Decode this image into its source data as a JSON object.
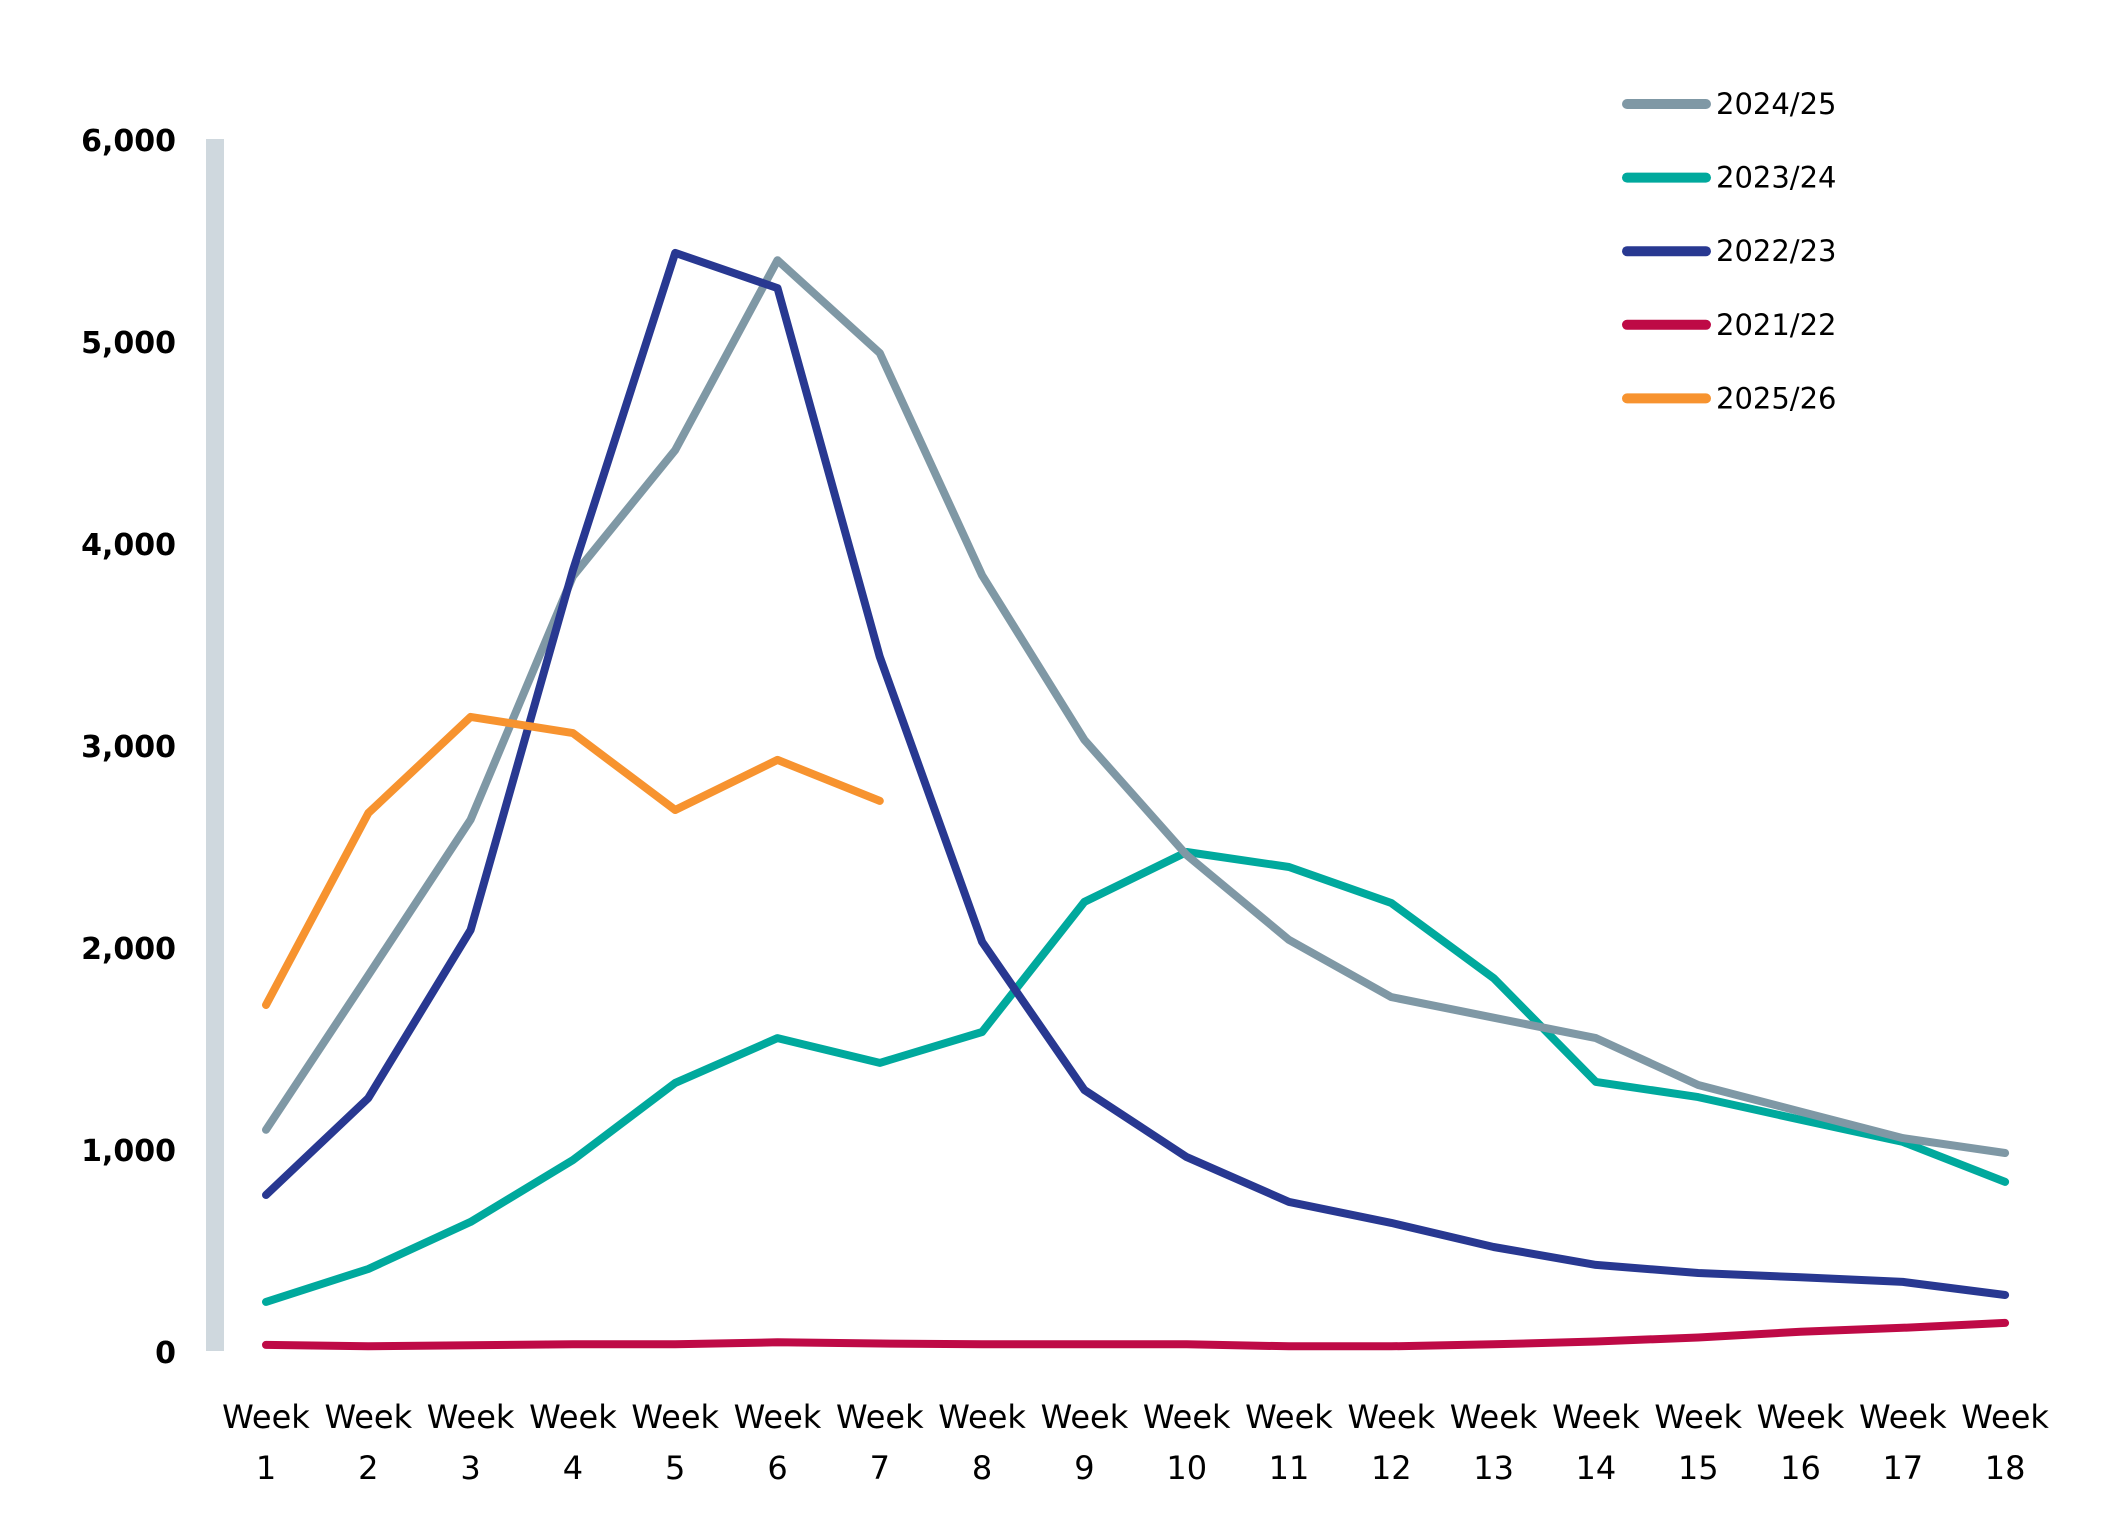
{
  "chart_data": {
    "type": "line",
    "title": "",
    "xlabel": "",
    "ylabel": "",
    "ylim": [
      0,
      6000
    ],
    "yticks": [
      0,
      1000,
      2000,
      3000,
      4000,
      5000,
      6000
    ],
    "ytick_labels": [
      "0",
      "1,000",
      "2,000",
      "3,000",
      "4,000",
      "5,000",
      "6,000"
    ],
    "grid": false,
    "legend_position": "top-right",
    "categories": [
      [
        "Week",
        "1"
      ],
      [
        "Week",
        "2"
      ],
      [
        "Week",
        "3"
      ],
      [
        "Week",
        "4"
      ],
      [
        "Week",
        "5"
      ],
      [
        "Week",
        "6"
      ],
      [
        "Week",
        "7"
      ],
      [
        "Week",
        "8"
      ],
      [
        "Week",
        "9"
      ],
      [
        "Week",
        "10"
      ],
      [
        "Week",
        "11"
      ],
      [
        "Week",
        "12"
      ],
      [
        "Week",
        "13"
      ],
      [
        "Week",
        "14"
      ],
      [
        "Week",
        "15"
      ],
      [
        "Week",
        "16"
      ],
      [
        "Week",
        "17"
      ],
      [
        "Week",
        "18"
      ]
    ],
    "series": [
      {
        "name": "2024/25",
        "color": "#7F98A5",
        "values": [
          1100,
          1865,
          2635,
          3840,
          4465,
          5405,
          4945,
          3845,
          3030,
          2460,
          2040,
          1757,
          1655,
          1554,
          1322,
          1190,
          1059,
          985
        ]
      },
      {
        "name": "2023/24",
        "color": "#00A99D",
        "values": [
          248,
          411,
          644,
          950,
          1332,
          1554,
          1431,
          1584,
          2228,
          2475,
          2401,
          2223,
          1851,
          1337,
          1262,
          1150,
          1040,
          842
        ]
      },
      {
        "name": "2022/23",
        "color": "#283891",
        "values": [
          777,
          1257,
          2089,
          3870,
          5441,
          5267,
          3441,
          2030,
          1297,
          965,
          743,
          639,
          520,
          431,
          391,
          370,
          347,
          282
        ]
      },
      {
        "name": "2021/22",
        "color": "#BE0A46",
        "values": [
          35,
          28,
          33,
          38,
          38,
          48,
          42,
          38,
          38,
          38,
          28,
          28,
          38,
          52,
          72,
          100,
          120,
          144
        ]
      },
      {
        "name": "2025/26",
        "color": "#F7932F",
        "values": [
          1718,
          2668,
          3144,
          3064,
          2683,
          2931,
          2728
        ]
      }
    ],
    "axis_bar_color": "#CFD8DE"
  }
}
